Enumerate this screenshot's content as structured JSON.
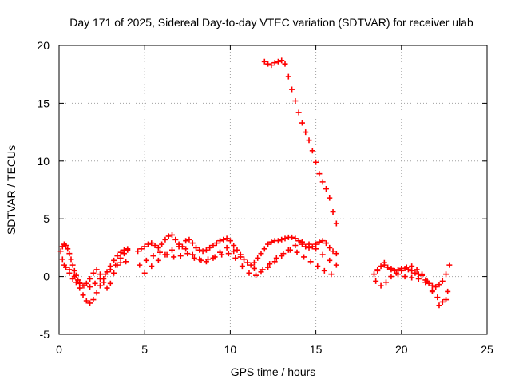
{
  "chart_data": {
    "type": "scatter",
    "title": "Day 171 of 2025, Sidereal Day-to-day VTEC variation (SDTVAR) for receiver ulab",
    "xlabel": "GPS time / hours",
    "ylabel": "SDTVAR / TECUs",
    "xlim": [
      0,
      25
    ],
    "ylim": [
      -5,
      20
    ],
    "xticks": [
      0,
      5,
      10,
      15,
      20,
      25
    ],
    "yticks": [
      -5,
      0,
      5,
      10,
      15,
      20
    ],
    "xtick_labels": [
      "0",
      "5",
      "10",
      "15",
      "20",
      "25"
    ],
    "ytick_labels": [
      "-5",
      "0",
      "5",
      "10",
      "15",
      "20"
    ],
    "grid": true,
    "marker": "+",
    "color": "#ff0000",
    "series": [
      {
        "name": "SDTVAR",
        "x": [
          0.1,
          0.2,
          0.3,
          0.4,
          0.5,
          0.6,
          0.7,
          0.8,
          0.9,
          1.0,
          1.1,
          1.2,
          1.4,
          1.6,
          1.8,
          2.0,
          2.2,
          2.4,
          2.6,
          2.8,
          3.0,
          3.2,
          3.4,
          3.6,
          3.8,
          4.0,
          0.2,
          0.4,
          0.6,
          0.8,
          1.0,
          1.2,
          1.4,
          1.6,
          1.8,
          2.0,
          2.2,
          2.4,
          2.6,
          2.8,
          3.0,
          3.2,
          3.4,
          3.6,
          3.8,
          4.0,
          0.3,
          0.6,
          0.9,
          1.2,
          1.5,
          1.8,
          2.1,
          2.4,
          2.7,
          3.0,
          3.3,
          3.6,
          3.9,
          4.6,
          4.8,
          5.0,
          5.2,
          5.4,
          5.6,
          5.8,
          6.0,
          6.2,
          6.4,
          6.6,
          6.8,
          7.0,
          7.2,
          7.4,
          7.6,
          7.8,
          8.0,
          8.2,
          8.4,
          8.6,
          8.8,
          9.0,
          9.2,
          9.4,
          9.6,
          9.8,
          10.0,
          10.2,
          10.4,
          10.6,
          10.8,
          11.0,
          11.2,
          11.4,
          11.6,
          11.8,
          12.0,
          12.2,
          12.4,
          12.6,
          12.8,
          13.0,
          13.2,
          13.4,
          13.6,
          13.8,
          14.0,
          14.2,
          14.4,
          14.6,
          14.8,
          15.0,
          15.2,
          15.4,
          15.6,
          15.8,
          16.0,
          16.2,
          5.0,
          5.4,
          5.8,
          6.2,
          6.6,
          7.0,
          7.4,
          7.8,
          8.2,
          8.6,
          9.0,
          9.4,
          9.8,
          10.2,
          10.6,
          11.0,
          11.4,
          11.8,
          12.2,
          12.6,
          13.0,
          13.4,
          13.8,
          14.2,
          14.6,
          15.0,
          15.4,
          15.8,
          16.2,
          4.7,
          5.1,
          5.5,
          5.9,
          6.3,
          6.7,
          7.1,
          7.5,
          7.9,
          8.3,
          8.7,
          9.1,
          9.5,
          9.9,
          10.3,
          10.7,
          11.1,
          11.5,
          11.9,
          12.3,
          12.7,
          13.1,
          13.5,
          13.9,
          14.3,
          14.7,
          15.1,
          15.5,
          15.9,
          12.0,
          12.2,
          12.4,
          12.6,
          12.8,
          13.0,
          13.2,
          13.4,
          13.6,
          13.8,
          14.0,
          14.2,
          14.4,
          14.6,
          14.8,
          15.0,
          15.2,
          15.4,
          15.6,
          15.8,
          16.0,
          16.2,
          18.4,
          18.6,
          18.8,
          19.0,
          19.2,
          19.4,
          19.6,
          19.8,
          20.0,
          20.2,
          20.4,
          20.6,
          20.8,
          21.0,
          21.2,
          21.4,
          21.6,
          21.8,
          22.0,
          22.2,
          22.4,
          22.6,
          22.8,
          18.5,
          18.8,
          19.1,
          19.4,
          19.7,
          20.0,
          20.3,
          20.6,
          20.9,
          21.2,
          21.5,
          21.8,
          22.1,
          22.4,
          22.7,
          18.6,
          19.0,
          19.4,
          19.8,
          20.2,
          20.6,
          21.0,
          21.4,
          21.8,
          22.2,
          22.6
        ],
        "y": [
          2.2,
          2.6,
          2.8,
          2.7,
          2.4,
          2.0,
          1.5,
          1.0,
          0.5,
          0.1,
          -0.3,
          -0.6,
          -0.8,
          -0.6,
          -0.2,
          0.3,
          0.6,
          0.2,
          -0.5,
          -1.0,
          -0.6,
          0.3,
          1.0,
          1.6,
          2.0,
          2.3,
          1.5,
          0.8,
          0.3,
          -0.2,
          -0.5,
          -1.0,
          -1.6,
          -2.1,
          -2.3,
          -2.0,
          -1.4,
          -0.8,
          -0.2,
          0.4,
          0.9,
          1.4,
          1.8,
          2.1,
          2.3,
          2.4,
          1.0,
          0.6,
          0.0,
          -0.5,
          -0.8,
          -0.9,
          -0.6,
          -0.2,
          0.2,
          0.6,
          1.0,
          1.2,
          1.3,
          2.2,
          2.4,
          2.6,
          2.8,
          2.9,
          2.7,
          2.5,
          2.8,
          3.2,
          3.5,
          3.6,
          3.2,
          2.8,
          2.6,
          3.1,
          3.2,
          2.9,
          2.5,
          2.3,
          2.2,
          2.3,
          2.5,
          2.7,
          2.9,
          3.1,
          3.2,
          3.3,
          3.1,
          2.7,
          2.3,
          1.9,
          1.5,
          1.2,
          1.0,
          1.2,
          1.6,
          2.0,
          2.4,
          2.8,
          3.0,
          3.1,
          3.1,
          3.2,
          3.3,
          3.4,
          3.4,
          3.3,
          3.1,
          2.8,
          2.6,
          2.5,
          2.6,
          2.8,
          3.0,
          3.1,
          2.9,
          2.5,
          2.2,
          2.0,
          0.3,
          0.9,
          1.4,
          1.9,
          2.3,
          2.6,
          2.4,
          1.9,
          1.5,
          1.3,
          1.6,
          2.1,
          2.5,
          2.2,
          1.7,
          1.2,
          0.7,
          0.4,
          0.8,
          1.3,
          1.8,
          2.3,
          2.7,
          3.0,
          2.8,
          2.4,
          1.9,
          1.4,
          1.0,
          1.0,
          1.4,
          1.8,
          2.1,
          1.9,
          1.7,
          1.8,
          2.0,
          1.6,
          1.4,
          1.5,
          1.7,
          1.9,
          2.0,
          1.6,
          0.9,
          0.3,
          0.1,
          0.6,
          1.1,
          1.6,
          2.0,
          2.3,
          2.1,
          1.7,
          1.3,
          0.9,
          0.5,
          0.2,
          18.6,
          18.4,
          18.3,
          18.5,
          18.6,
          18.7,
          18.4,
          17.3,
          16.2,
          15.2,
          14.2,
          13.3,
          12.5,
          11.8,
          10.9,
          9.9,
          8.9,
          8.2,
          7.6,
          6.8,
          5.6,
          4.6,
          0.2,
          0.6,
          0.9,
          1.0,
          0.8,
          0.6,
          0.5,
          0.6,
          0.7,
          0.7,
          0.6,
          0.5,
          0.3,
          0.2,
          0.1,
          -0.3,
          -0.6,
          -0.8,
          -0.9,
          -0.7,
          -0.4,
          0.2,
          1.0,
          -0.4,
          -0.8,
          -0.5,
          0.0,
          0.3,
          0.5,
          0.8,
          0.9,
          0.6,
          0.2,
          -0.4,
          -1.2,
          -1.8,
          -2.2,
          -1.3,
          0.5,
          1.2,
          0.7,
          0.2,
          0.0,
          -0.1,
          -0.2,
          -0.5,
          -1.3,
          -2.5,
          -2.0
        ]
      }
    ]
  }
}
